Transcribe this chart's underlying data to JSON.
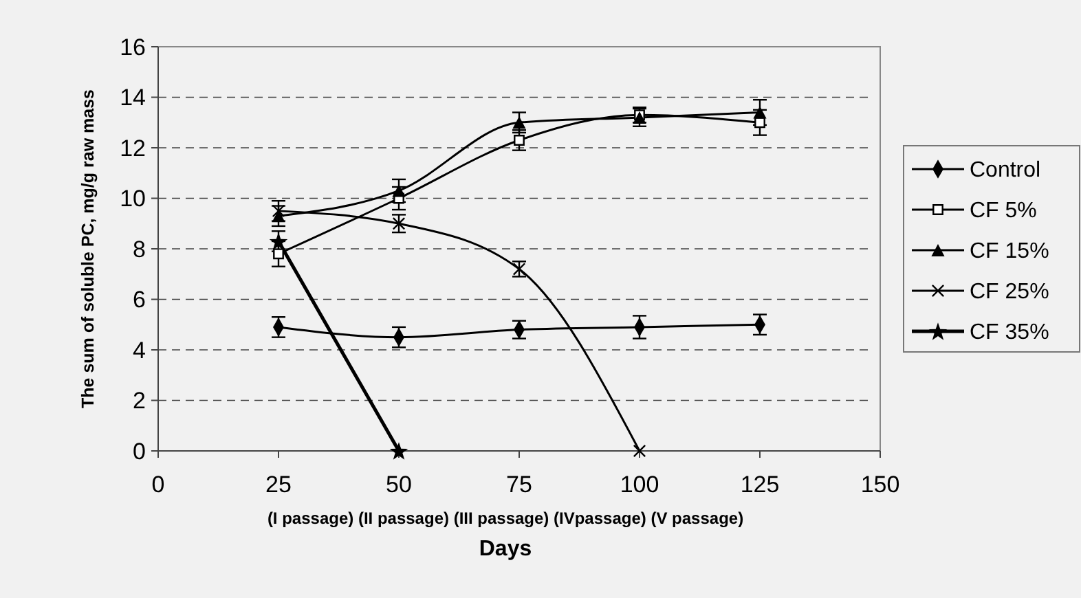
{
  "chart_data": {
    "type": "line",
    "xlabel": "Days",
    "ylabel": "The sum of  soluble PC, mg/g raw mass",
    "annotations": [
      "(I passage) (II passage) (III passage) (IVpassage) (V passage)"
    ],
    "x": [
      25,
      50,
      75,
      100,
      125
    ],
    "series": [
      {
        "name": "Control",
        "color": "#000000",
        "marker": "diamond",
        "values": [
          4.9,
          4.5,
          4.8,
          4.9,
          5.0
        ],
        "errors": [
          0.4,
          0.4,
          0.35,
          0.45,
          0.4
        ]
      },
      {
        "name": "CF 5%",
        "color": "#000000",
        "marker": "square",
        "values": [
          7.8,
          10.0,
          12.3,
          13.3,
          13.0
        ],
        "errors": [
          0.5,
          0.45,
          0.4,
          0.3,
          0.5
        ]
      },
      {
        "name": "CF 15%",
        "color": "#000000",
        "marker": "triangle",
        "values": [
          9.3,
          10.3,
          13.0,
          13.2,
          13.4
        ],
        "errors": [
          0.4,
          0.45,
          0.4,
          0.35,
          0.5
        ]
      },
      {
        "name": "CF 25%",
        "color": "#000000",
        "marker": "cross",
        "values": [
          9.5,
          9.0,
          7.2,
          0,
          null
        ],
        "errors": [
          0.4,
          0.35,
          0.3,
          null,
          null
        ]
      },
      {
        "name": "CF 35%",
        "color": "#000000",
        "marker": "star",
        "values": [
          8.3,
          0,
          null,
          null,
          null
        ],
        "errors": [
          0.4,
          null,
          null,
          null,
          null
        ]
      }
    ],
    "xlim": [
      0,
      150
    ],
    "xticks": [
      0,
      25,
      50,
      75,
      100,
      125,
      150
    ],
    "ylim": [
      0,
      16
    ],
    "yticks": [
      0,
      2,
      4,
      6,
      8,
      10,
      12,
      14,
      16
    ],
    "grid": "y",
    "legend": "right",
    "line_style": "solid"
  }
}
